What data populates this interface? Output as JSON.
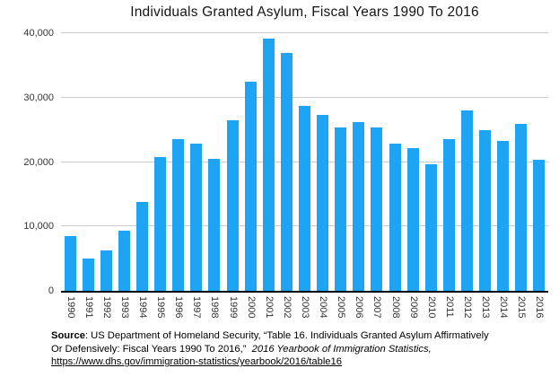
{
  "chart_data": {
    "type": "bar",
    "title": "Individuals Granted Asylum, Fiscal Years 1990 To 2016",
    "categories": [
      "1990",
      "1991",
      "1992",
      "1993",
      "1994",
      "1995",
      "1996",
      "1997",
      "1998",
      "1999",
      "2000",
      "2001",
      "2002",
      "2003",
      "2004",
      "2005",
      "2006",
      "2007",
      "2008",
      "2009",
      "2010",
      "2011",
      "2012",
      "2013",
      "2014",
      "2015",
      "2016"
    ],
    "values": [
      8500,
      5000,
      6300,
      9400,
      13800,
      20700,
      23600,
      22900,
      20500,
      26500,
      32500,
      39100,
      36900,
      28700,
      27300,
      25300,
      26200,
      25300,
      22900,
      22200,
      19700,
      23500,
      28000,
      24900,
      23300,
      25900,
      20400
    ],
    "xlabel": "",
    "ylabel": "",
    "ylim": [
      0,
      40000
    ],
    "yticks": [
      0,
      10000,
      20000,
      30000,
      40000
    ],
    "ytick_labels": [
      "0",
      "10,000",
      "20,000",
      "30,000",
      "40,000"
    ],
    "grid": true,
    "legend": "none",
    "bar_color": "#1fa3f4",
    "grid_color": "#cccccc",
    "axis_color": "#000000",
    "x_tick_rotation_deg": 90
  },
  "source": {
    "label": "Source",
    "line1_rest": ": US Department of Homeland Security, “Table 16. Individuals Granted Asylum Affirmatively",
    "line2_plain": "Or Defensively: Fiscal Years 1990 To 2016,” ",
    "line2_italic": "2016 Yearbook of Immigration Statistics,",
    "link": "https://www.dhs.gov/immigration-statistics/yearbook/2016/table16"
  }
}
